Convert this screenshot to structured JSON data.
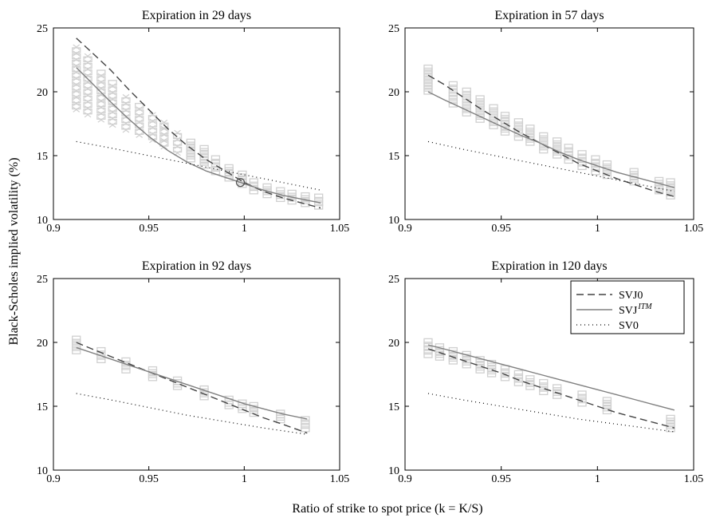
{
  "figure": {
    "ylabel": "Black-Scholes implied volatility (%)",
    "xlabel": "Ratio of strike to spot price (k = K/S)"
  },
  "legend": {
    "entries": [
      {
        "name": "SVJ0",
        "style": "dashed"
      },
      {
        "name": "SVJ",
        "sup": "ITM",
        "style": "solid"
      },
      {
        "name": "SV0",
        "style": "dotted"
      }
    ],
    "placement": "top-right of the 120-day panel"
  },
  "colors": {
    "svj0": "#444444",
    "svj_itm": "#808080",
    "sv0": "#000000",
    "markers": "#d0d0d0"
  },
  "chart_data": [
    {
      "type": "line",
      "title": "Expiration in 29 days",
      "xlim": [
        0.9,
        1.05
      ],
      "ylim": [
        10,
        25
      ],
      "xticks": [
        0.9,
        0.95,
        1,
        1.05
      ],
      "xtick_labels": [
        "0.9",
        "0.95",
        "1",
        "1.05"
      ],
      "yticks": [
        10,
        15,
        20,
        25
      ],
      "ytick_labels": [
        "10",
        "15",
        "20",
        "25"
      ],
      "observed": {
        "x": [
          0.912,
          0.918,
          0.925,
          0.931,
          0.938,
          0.945,
          0.952,
          0.958,
          0.965,
          0.972,
          0.979,
          0.985,
          0.992,
          0.999,
          1.005,
          1.012,
          1.019,
          1.025,
          1.032,
          1.039
        ],
        "y_low": [
          18.6,
          18.2,
          17.8,
          17.4,
          17.0,
          16.6,
          16.2,
          15.7,
          15.2,
          14.7,
          14.2,
          13.7,
          13.2,
          12.7,
          12.2,
          11.9,
          11.6,
          11.4,
          11.2,
          11.0
        ],
        "y_high": [
          23.5,
          22.8,
          21.5,
          20.7,
          19.6,
          18.9,
          18.2,
          17.6,
          16.8,
          16.1,
          15.6,
          14.8,
          14.1,
          13.6,
          13.0,
          12.6,
          12.3,
          12.1,
          11.9,
          11.8
        ]
      },
      "atm_marker": {
        "x": 0.998,
        "y": 12.9
      },
      "series": [
        {
          "name": "SVJ0",
          "x": [
            0.912,
            0.92,
            0.93,
            0.94,
            0.95,
            0.96,
            0.97,
            0.98,
            0.99,
            1.0,
            1.01,
            1.02,
            1.03,
            1.04
          ],
          "y": [
            24.2,
            23.1,
            21.7,
            20.1,
            18.6,
            17.1,
            15.8,
            14.7,
            13.8,
            12.9,
            12.2,
            11.7,
            11.3,
            10.9
          ]
        },
        {
          "name": "SVJ^ITM",
          "x": [
            0.912,
            0.92,
            0.93,
            0.94,
            0.95,
            0.96,
            0.97,
            0.98,
            0.99,
            1.0,
            1.01,
            1.02,
            1.03,
            1.04
          ],
          "y": [
            21.9,
            20.7,
            19.2,
            17.8,
            16.5,
            15.4,
            14.5,
            13.8,
            13.3,
            12.8,
            12.3,
            11.9,
            11.6,
            11.3
          ]
        },
        {
          "name": "SV0",
          "x": [
            0.912,
            0.93,
            0.95,
            0.97,
            0.99,
            1.01,
            1.03,
            1.04
          ],
          "y": [
            16.1,
            15.6,
            15.0,
            14.4,
            13.8,
            13.2,
            12.6,
            12.3
          ]
        }
      ]
    },
    {
      "type": "line",
      "title": "Expiration in 57 days",
      "xlim": [
        0.9,
        1.05
      ],
      "ylim": [
        10,
        25
      ],
      "xticks": [
        0.9,
        0.95,
        1,
        1.05
      ],
      "xtick_labels": [
        "0.9",
        "0.95",
        "1",
        "1.05"
      ],
      "yticks": [
        10,
        15,
        20,
        25
      ],
      "ytick_labels": [
        "10",
        "15",
        "20",
        "25"
      ],
      "observed": {
        "x": [
          0.912,
          0.925,
          0.932,
          0.939,
          0.946,
          0.952,
          0.959,
          0.965,
          0.972,
          0.979,
          0.985,
          0.992,
          0.999,
          1.005,
          1.019,
          1.032,
          1.038
        ],
        "y_low": [
          20.0,
          19.0,
          18.3,
          17.8,
          17.3,
          16.8,
          16.4,
          16.0,
          15.4,
          15.0,
          14.6,
          14.1,
          13.7,
          13.4,
          12.9,
          12.2,
          11.8
        ],
        "y_high": [
          21.9,
          20.6,
          20.1,
          19.5,
          18.8,
          18.2,
          17.7,
          17.2,
          16.6,
          16.2,
          15.7,
          15.2,
          14.8,
          14.4,
          13.8,
          13.1,
          13.0
        ]
      },
      "series": [
        {
          "name": "SVJ0",
          "x": [
            0.912,
            0.92,
            0.93,
            0.94,
            0.95,
            0.96,
            0.97,
            0.98,
            0.99,
            1.0,
            1.01,
            1.02,
            1.03,
            1.04
          ],
          "y": [
            21.3,
            20.6,
            19.6,
            18.6,
            17.7,
            16.8,
            16.0,
            15.2,
            14.4,
            13.8,
            13.2,
            12.7,
            12.2,
            11.8
          ]
        },
        {
          "name": "SVJ^ITM",
          "x": [
            0.912,
            0.92,
            0.93,
            0.94,
            0.95,
            0.96,
            0.97,
            0.98,
            0.99,
            1.0,
            1.01,
            1.02,
            1.03,
            1.04
          ],
          "y": [
            20.0,
            19.4,
            18.7,
            18.0,
            17.3,
            16.6,
            16.0,
            15.3,
            14.7,
            14.2,
            13.7,
            13.3,
            12.9,
            12.5
          ]
        },
        {
          "name": "SV0",
          "x": [
            0.912,
            0.93,
            0.95,
            0.97,
            0.99,
            1.01,
            1.03,
            1.04
          ],
          "y": [
            16.1,
            15.5,
            14.9,
            14.3,
            13.7,
            13.1,
            12.5,
            12.2
          ]
        }
      ]
    },
    {
      "type": "line",
      "title": "Expiration in 92 days",
      "xlim": [
        0.9,
        1.05
      ],
      "ylim": [
        10,
        25
      ],
      "xticks": [
        0.9,
        0.95,
        1,
        1.05
      ],
      "xtick_labels": [
        "0.9",
        "0.95",
        "1",
        "1.05"
      ],
      "yticks": [
        10,
        15,
        20,
        25
      ],
      "ytick_labels": [
        "10",
        "15",
        "20",
        "25"
      ],
      "observed": {
        "x": [
          0.912,
          0.925,
          0.938,
          0.952,
          0.965,
          0.979,
          0.992,
          0.999,
          1.005,
          1.019,
          1.032
        ],
        "y_low": [
          19.3,
          18.6,
          17.8,
          17.2,
          16.5,
          15.7,
          15.0,
          14.7,
          14.4,
          13.9,
          13.2
        ],
        "y_high": [
          20.3,
          19.4,
          18.6,
          17.9,
          17.1,
          16.4,
          15.6,
          15.3,
          15.1,
          14.5,
          14.0
        ]
      },
      "series": [
        {
          "name": "SVJ0",
          "x": [
            0.912,
            0.92,
            0.93,
            0.94,
            0.95,
            0.96,
            0.97,
            0.98,
            0.99,
            1.0,
            1.01,
            1.02,
            1.033
          ],
          "y": [
            20.0,
            19.5,
            18.9,
            18.3,
            17.7,
            17.1,
            16.5,
            15.9,
            15.3,
            14.7,
            14.1,
            13.6,
            12.9
          ]
        },
        {
          "name": "SVJ^ITM",
          "x": [
            0.912,
            0.92,
            0.93,
            0.94,
            0.95,
            0.96,
            0.97,
            0.98,
            0.99,
            1.0,
            1.01,
            1.02,
            1.033
          ],
          "y": [
            19.6,
            19.2,
            18.7,
            18.2,
            17.7,
            17.2,
            16.7,
            16.2,
            15.7,
            15.2,
            14.8,
            14.4,
            14.0
          ]
        },
        {
          "name": "SV0",
          "x": [
            0.912,
            0.93,
            0.95,
            0.97,
            0.99,
            1.01,
            1.033
          ],
          "y": [
            16.0,
            15.5,
            14.9,
            14.3,
            13.8,
            13.3,
            12.8
          ]
        }
      ]
    },
    {
      "type": "line",
      "title": "Expiration in 120 days",
      "xlim": [
        0.9,
        1.05
      ],
      "ylim": [
        10,
        25
      ],
      "xticks": [
        0.9,
        0.95,
        1,
        1.05
      ],
      "xtick_labels": [
        "0.9",
        "0.95",
        "1",
        "1.05"
      ],
      "yticks": [
        10,
        15,
        20,
        25
      ],
      "ytick_labels": [
        "10",
        "15",
        "20",
        "25"
      ],
      "observed": {
        "x": [
          0.912,
          0.918,
          0.925,
          0.932,
          0.939,
          0.945,
          0.952,
          0.959,
          0.965,
          0.972,
          0.979,
          0.992,
          1.005,
          1.038
        ],
        "y_low": [
          19.0,
          18.8,
          18.5,
          18.2,
          17.8,
          17.5,
          17.2,
          16.8,
          16.5,
          16.1,
          15.8,
          15.2,
          14.6,
          13.2
        ],
        "y_high": [
          20.1,
          19.7,
          19.4,
          19.1,
          18.7,
          18.4,
          18.0,
          17.6,
          17.2,
          16.9,
          16.5,
          16.0,
          15.5,
          14.1
        ]
      },
      "series": [
        {
          "name": "SVJ0",
          "x": [
            0.912,
            0.92,
            0.93,
            0.94,
            0.95,
            0.96,
            0.97,
            0.98,
            0.99,
            1.0,
            1.01,
            1.02,
            1.03,
            1.04
          ],
          "y": [
            19.5,
            19.1,
            18.6,
            18.1,
            17.6,
            17.0,
            16.5,
            16.0,
            15.5,
            15.0,
            14.5,
            14.1,
            13.7,
            13.3
          ]
        },
        {
          "name": "SVJ^ITM",
          "x": [
            0.912,
            0.92,
            0.93,
            0.94,
            0.95,
            0.96,
            0.97,
            0.98,
            0.99,
            1.0,
            1.01,
            1.02,
            1.03,
            1.04
          ],
          "y": [
            19.8,
            19.5,
            19.1,
            18.7,
            18.3,
            17.9,
            17.5,
            17.1,
            16.7,
            16.3,
            15.9,
            15.5,
            15.1,
            14.7
          ]
        },
        {
          "name": "SV0",
          "x": [
            0.912,
            0.93,
            0.95,
            0.97,
            0.99,
            1.01,
            1.03,
            1.04
          ],
          "y": [
            16.0,
            15.5,
            15.0,
            14.5,
            14.0,
            13.6,
            13.2,
            13.0
          ]
        }
      ]
    }
  ]
}
